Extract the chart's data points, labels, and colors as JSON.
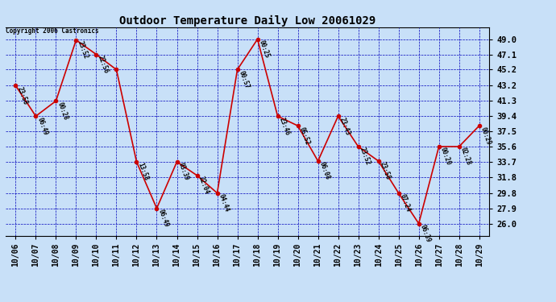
{
  "title": "Outdoor Temperature Daily Low 20061029",
  "copyright": "Copyright 2006 Castronics",
  "background_color": "#c8e0f8",
  "plot_bg_color": "#c8e0f8",
  "line_color": "#cc0000",
  "marker_color": "#cc0000",
  "grid_color": "#0000bb",
  "text_color": "#000000",
  "dates": [
    "10/06",
    "10/07",
    "10/08",
    "10/09",
    "10/10",
    "10/11",
    "10/12",
    "10/13",
    "10/14",
    "10/15",
    "10/16",
    "10/17",
    "10/18",
    "10/19",
    "10/20",
    "10/21",
    "10/22",
    "10/23",
    "10/24",
    "10/25",
    "10/26",
    "10/27",
    "10/28",
    "10/29"
  ],
  "temperatures": [
    43.2,
    39.4,
    41.3,
    48.9,
    47.1,
    45.2,
    33.7,
    27.9,
    33.7,
    32.0,
    29.8,
    45.2,
    49.0,
    39.4,
    38.2,
    33.8,
    39.4,
    35.6,
    33.8,
    29.8,
    26.0,
    35.6,
    35.6,
    38.2
  ],
  "labels": [
    "23:58",
    "06:49",
    "00:28",
    "23:52",
    "22:56",
    "",
    "13:58",
    "06:49",
    "03:39",
    "22:04",
    "04:44",
    "00:57",
    "00:25",
    "23:46",
    "05:52",
    "06:08",
    "23:43",
    "23:52",
    "23:58",
    "07:24",
    "06:39",
    "00:20",
    "02:28",
    "00:29"
  ],
  "yticks": [
    26.0,
    27.9,
    29.8,
    31.8,
    33.7,
    35.6,
    37.5,
    39.4,
    41.3,
    43.2,
    45.2,
    47.1,
    49.0
  ],
  "ylim": [
    24.5,
    50.5
  ],
  "xlim": [
    -0.5,
    23.5
  ]
}
